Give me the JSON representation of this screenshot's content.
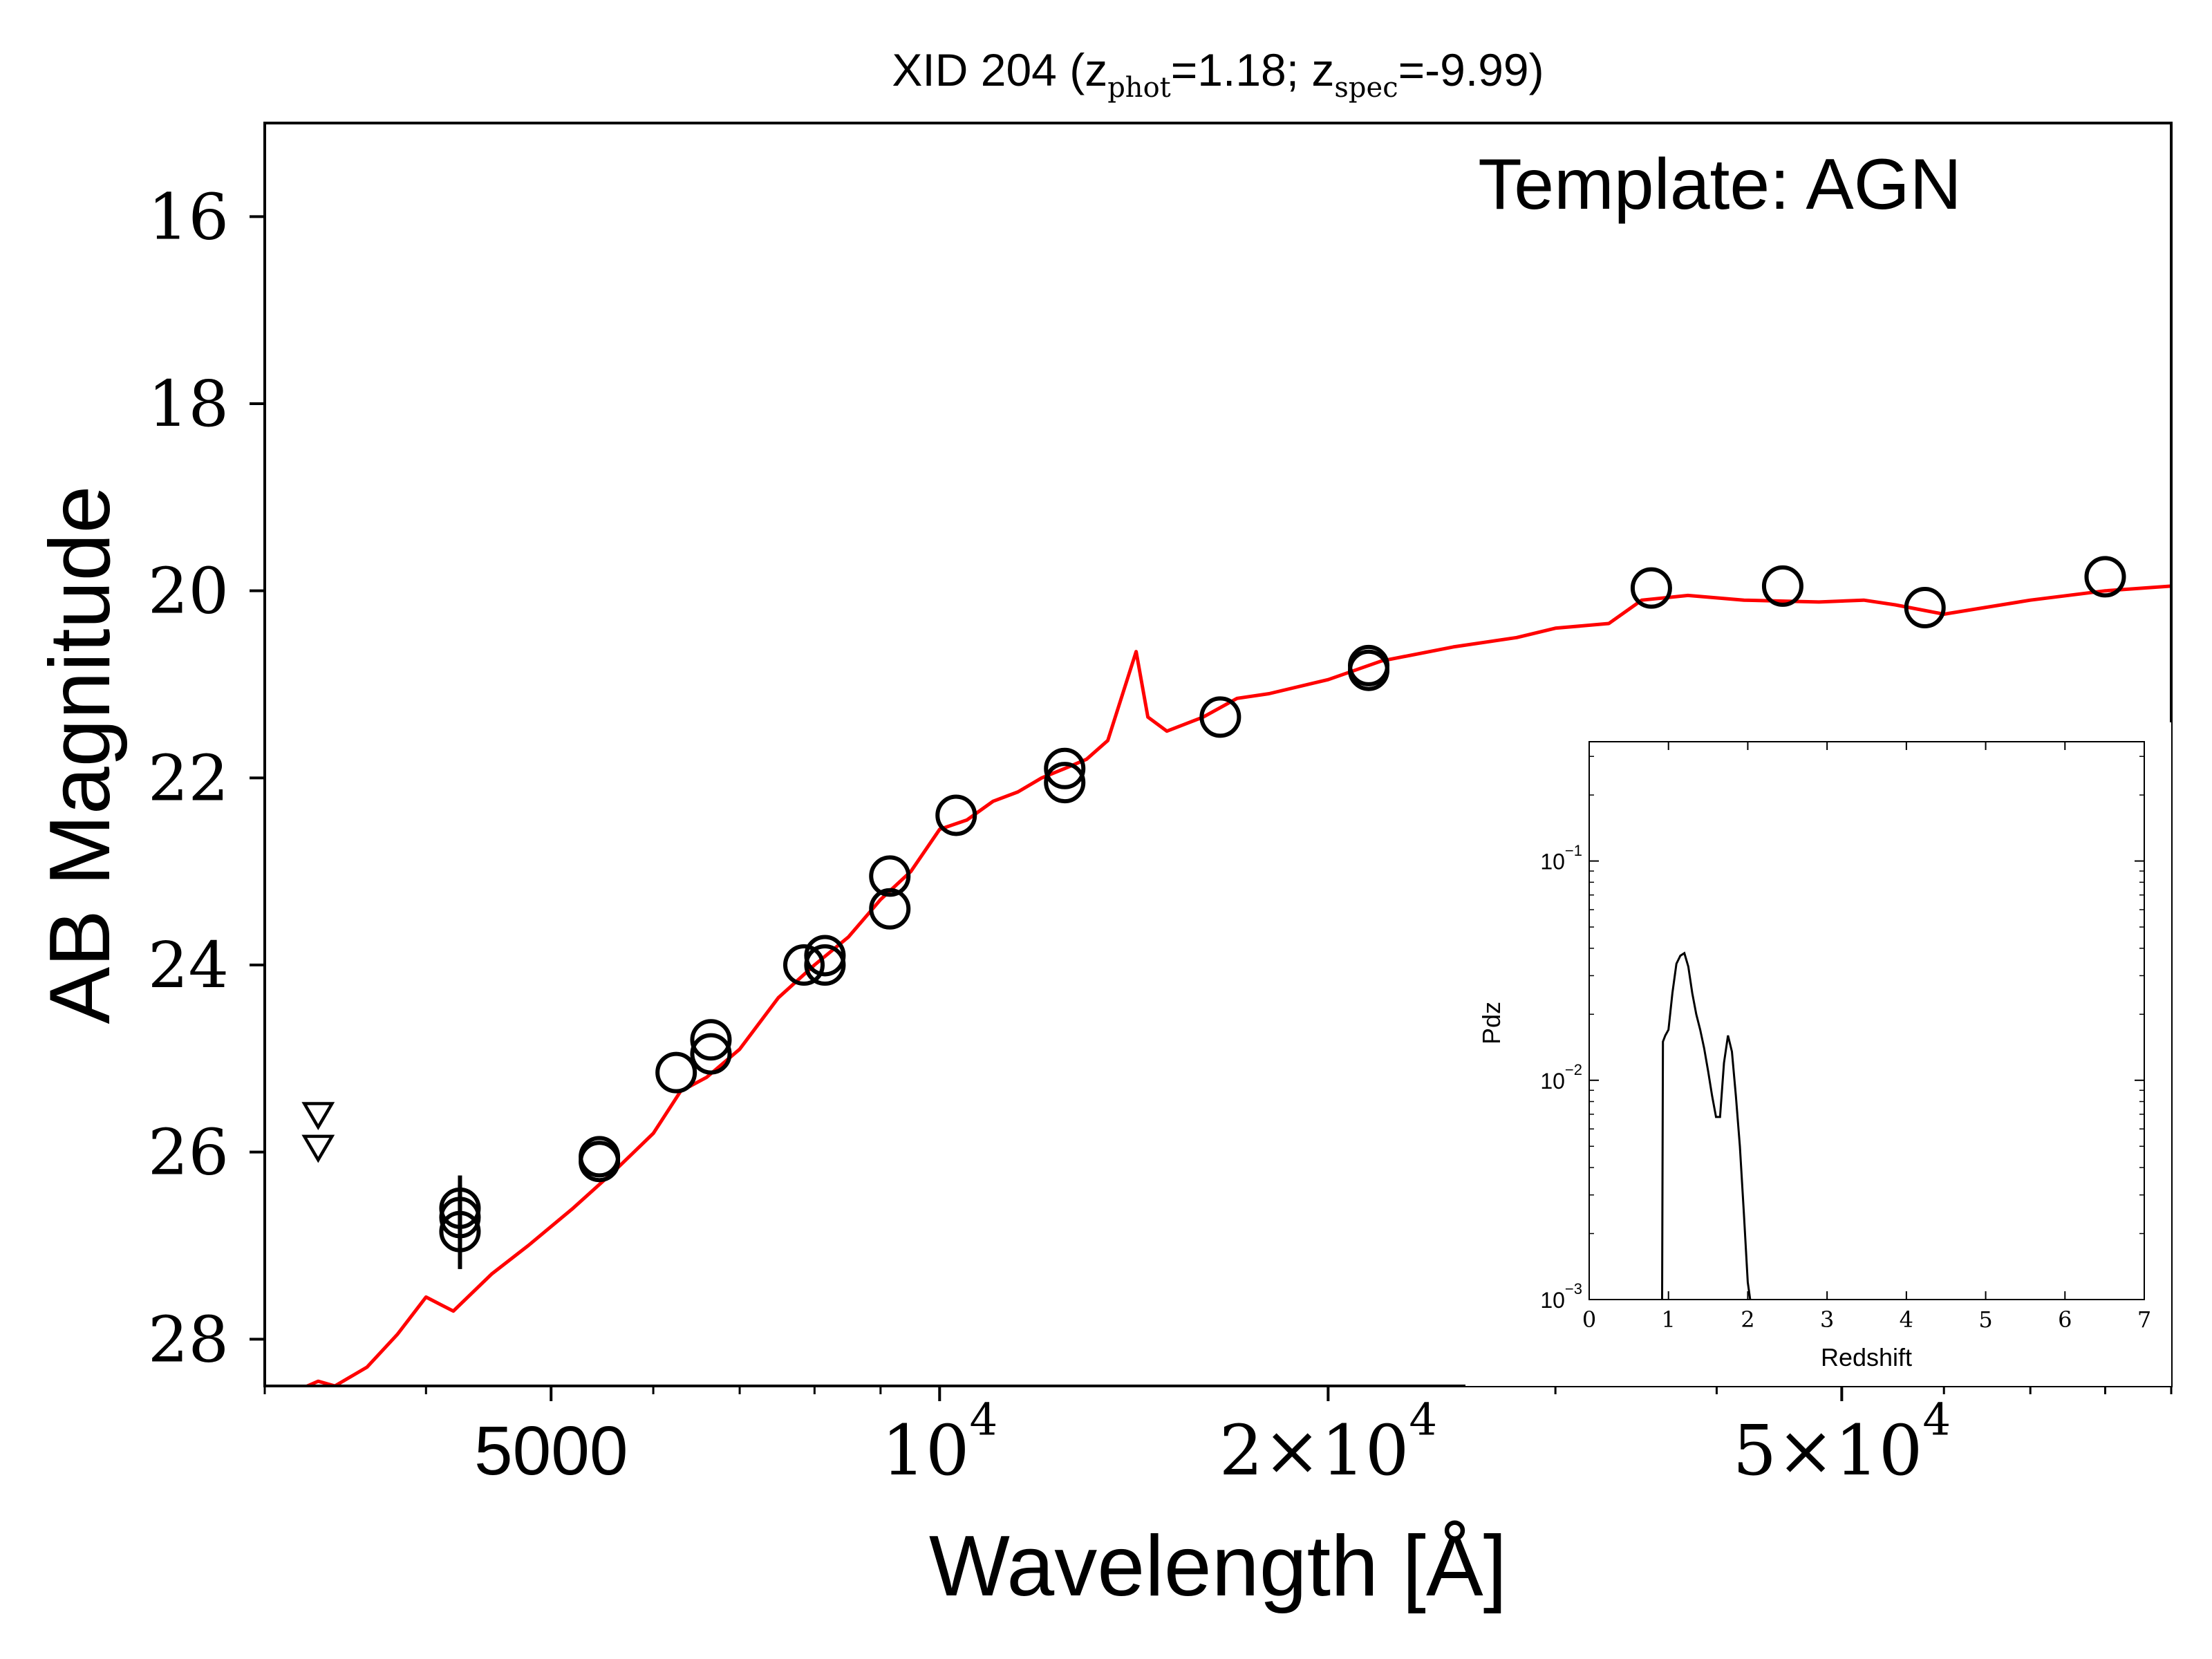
{
  "chart_data": [
    {
      "type": "scatter",
      "title_main": "XID 204 (z",
      "title_phot_sub": "phot",
      "title_mid": "=1.18; z",
      "title_spec_sub": "spec",
      "title_end": "=-9.99)",
      "annotation": "Template: AGN",
      "xlabel": "Wavelength [Å]",
      "ylabel": "AB Magnitude",
      "xscale": "log",
      "xlim": [
        3000,
        90000
      ],
      "ylim": [
        28.5,
        15.0
      ],
      "y_inverted": true,
      "x_ticks": [
        {
          "value": 5000,
          "label": "5000"
        },
        {
          "value": 10000,
          "base": "10",
          "exp": "4"
        },
        {
          "value": 20000,
          "mant": "2×10",
          "exp": "4"
        },
        {
          "value": 50000,
          "mant": "5×10",
          "exp": "4"
        }
      ],
      "y_ticks": [
        16,
        18,
        20,
        22,
        24,
        26,
        28
      ],
      "detections": [
        {
          "x": 4250,
          "y": 26.6,
          "err": 0.35
        },
        {
          "x": 4250,
          "y": 26.7,
          "err": 0.35
        },
        {
          "x": 4250,
          "y": 26.85,
          "err": 0.4
        },
        {
          "x": 5450,
          "y": 26.05
        },
        {
          "x": 5450,
          "y": 26.1
        },
        {
          "x": 6250,
          "y": 25.15
        },
        {
          "x": 6650,
          "y": 24.8
        },
        {
          "x": 6650,
          "y": 24.95
        },
        {
          "x": 7850,
          "y": 24.0
        },
        {
          "x": 8150,
          "y": 23.9
        },
        {
          "x": 8150,
          "y": 24.0
        },
        {
          "x": 9150,
          "y": 23.05
        },
        {
          "x": 9150,
          "y": 23.4
        },
        {
          "x": 10300,
          "y": 22.4
        },
        {
          "x": 12500,
          "y": 21.9
        },
        {
          "x": 12500,
          "y": 22.05
        },
        {
          "x": 16500,
          "y": 21.35
        },
        {
          "x": 21500,
          "y": 20.8
        },
        {
          "x": 21500,
          "y": 20.85
        },
        {
          "x": 35600,
          "y": 19.97
        },
        {
          "x": 45000,
          "y": 19.95
        },
        {
          "x": 58000,
          "y": 20.18
        },
        {
          "x": 80000,
          "y": 19.85
        }
      ],
      "upper_limits": [
        {
          "x": 3300,
          "y": 25.6
        },
        {
          "x": 3300,
          "y": 25.95
        }
      ],
      "template": {
        "name": "AGN",
        "color": "#ff0000",
        "x": [
          3000,
          3300,
          3400,
          3600,
          3800,
          4000,
          4200,
          4500,
          4800,
          5200,
          5600,
          6000,
          6300,
          6600,
          7000,
          7500,
          8000,
          8500,
          9000,
          9500,
          10000,
          10500,
          11000,
          11500,
          12000,
          12500,
          13000,
          13500,
          14200,
          14500,
          15000,
          16000,
          17000,
          18000,
          20000,
          22000,
          25000,
          28000,
          30000,
          33000,
          35000,
          38000,
          42000,
          48000,
          52000,
          55000,
          60000,
          70000,
          80000,
          90000
        ],
        "y": [
          28.7,
          28.45,
          28.5,
          28.3,
          27.95,
          27.55,
          27.7,
          27.3,
          27.0,
          26.6,
          26.2,
          25.8,
          25.35,
          25.2,
          24.9,
          24.35,
          24.0,
          23.7,
          23.3,
          23.0,
          22.55,
          22.45,
          22.25,
          22.15,
          22.0,
          21.9,
          21.8,
          21.6,
          20.65,
          21.35,
          21.5,
          21.35,
          21.15,
          21.1,
          20.95,
          20.75,
          20.6,
          20.5,
          20.4,
          20.35,
          20.1,
          20.05,
          20.1,
          20.12,
          20.1,
          20.15,
          20.25,
          20.1,
          20.0,
          19.95
        ]
      }
    },
    {
      "type": "line",
      "xlabel": "Redshift",
      "ylabel": "Pdz",
      "xscale": "linear",
      "yscale": "log",
      "xlim": [
        0,
        7
      ],
      "ylim": [
        0.001,
        0.35
      ],
      "x_ticks": [
        "0",
        "1",
        "2",
        "3",
        "4",
        "5",
        "6",
        "7"
      ],
      "y_ticks": [
        {
          "value": 0.001,
          "base": "10",
          "exp": "−3"
        },
        {
          "value": 0.01,
          "base": "10",
          "exp": "−2"
        },
        {
          "value": 0.1,
          "base": "10",
          "exp": "−1"
        }
      ],
      "x": [
        0.92,
        0.93,
        0.96,
        1.0,
        1.05,
        1.1,
        1.15,
        1.2,
        1.25,
        1.3,
        1.35,
        1.4,
        1.45,
        1.5,
        1.55,
        1.6,
        1.65,
        1.7,
        1.75,
        1.8,
        1.85,
        1.9,
        1.95,
        2.0,
        2.03
      ],
      "y": [
        0.001,
        0.015,
        0.016,
        0.017,
        0.025,
        0.034,
        0.037,
        0.038,
        0.033,
        0.025,
        0.02,
        0.017,
        0.014,
        0.011,
        0.0085,
        0.0068,
        0.0068,
        0.012,
        0.016,
        0.0135,
        0.0085,
        0.005,
        0.0025,
        0.0012,
        0.001
      ]
    }
  ]
}
